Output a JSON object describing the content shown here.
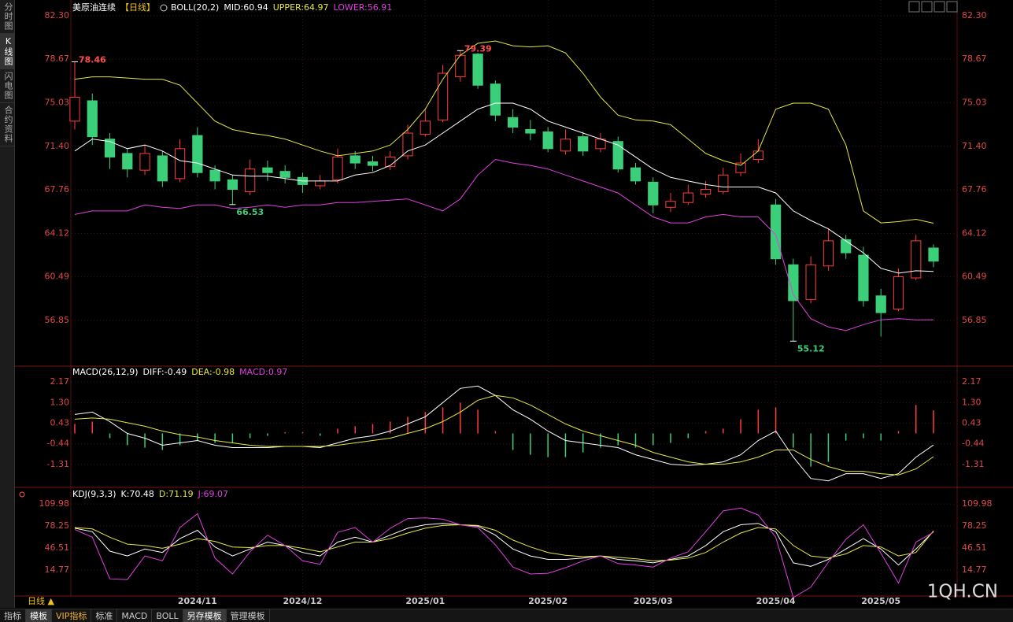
{
  "chart_data": [
    {
      "type": "candlestick",
      "title": "美原油连续",
      "period": "【日线】",
      "indicator": "BOLL(20,2)",
      "categories": [
        null,
        null,
        null,
        null,
        null,
        null,
        null,
        "2024/11",
        null,
        null,
        null,
        null,
        null,
        "2024/12",
        null,
        null,
        null,
        null,
        null,
        null,
        "2025/01",
        null,
        null,
        null,
        null,
        null,
        null,
        "2025/02",
        null,
        null,
        null,
        null,
        null,
        "2025/03",
        null,
        null,
        null,
        null,
        null,
        null,
        "2025/04",
        null,
        null,
        null,
        null,
        null,
        "2025/05",
        null,
        null,
        null
      ],
      "open": [
        73.5,
        75.2,
        72,
        70.8,
        69.4,
        70.6,
        68.7,
        72.3,
        69.4,
        68.6,
        67.6,
        69.6,
        69.3,
        68.8,
        68.1,
        68.6,
        70.6,
        70.1,
        69.7,
        70.6,
        72.4,
        73.6,
        77.2,
        79.1,
        76.6,
        73.8,
        72.8,
        72.6,
        71,
        72.2,
        71.2,
        71.8,
        69.6,
        68.4,
        66.3,
        66.7,
        67.4,
        67.6,
        69.2,
        70.3,
        66.5,
        61.5,
        58.6,
        61.4,
        63.6,
        62.3,
        58.9,
        57.8,
        60.4,
        62.9
      ],
      "high": [
        78.46,
        75.8,
        72.5,
        71.2,
        71.5,
        71,
        72,
        73,
        69.8,
        69,
        70.3,
        70.2,
        69.8,
        69.2,
        69,
        71.2,
        71,
        70.6,
        71,
        73.2,
        74.5,
        78.2,
        79.39,
        79.2,
        76.9,
        74.5,
        73.6,
        73,
        72.8,
        72.6,
        72.5,
        72.2,
        70,
        68.8,
        67.5,
        68.2,
        68.5,
        69.6,
        70.8,
        72,
        67,
        62,
        62.2,
        64.5,
        64,
        63,
        59.5,
        61.2,
        64,
        63.2
      ],
      "low": [
        72.8,
        71.5,
        69.5,
        68.8,
        69,
        68,
        68.4,
        68.8,
        67.8,
        66.53,
        67.3,
        68.5,
        68.3,
        67.5,
        67.8,
        68.3,
        69.5,
        69.3,
        69.4,
        70.3,
        72.2,
        73.4,
        76.8,
        76.2,
        73.5,
        72.5,
        71.9,
        70.9,
        70.7,
        70.6,
        70.9,
        69.2,
        68.2,
        65.8,
        65.9,
        66.5,
        67.1,
        67.4,
        68.9,
        70,
        61.5,
        55.12,
        58.3,
        61,
        62,
        58,
        55.5,
        57.6,
        60.2,
        61.3
      ],
      "close": [
        75.5,
        72.2,
        70.5,
        69.5,
        70.8,
        68.5,
        71.2,
        69.2,
        68.5,
        67.8,
        69.5,
        69.2,
        68.8,
        68.2,
        68.5,
        70.5,
        70,
        69.8,
        70.5,
        72.5,
        73.5,
        77.5,
        79,
        76.5,
        74,
        73,
        72.5,
        71.2,
        72,
        71,
        72,
        69.5,
        68.5,
        66.5,
        66.8,
        67.5,
        67.8,
        69,
        70,
        71,
        62,
        58.5,
        61.5,
        63.5,
        62.5,
        58.5,
        57.5,
        60.5,
        63.5,
        61.8
      ],
      "up_color": "#ff3b3b",
      "down_color": "#3ccf7a",
      "series": [
        {
          "name": "MID:60.94",
          "color": "#ffffff",
          "values": [
            71,
            72,
            71.8,
            71.2,
            71.5,
            71,
            70.2,
            70,
            69.5,
            69,
            68.9,
            68.9,
            68.7,
            68.5,
            68.5,
            68.5,
            69,
            69.2,
            69.8,
            71,
            71.5,
            72.5,
            73.5,
            74.5,
            75,
            75,
            74.5,
            73.5,
            73,
            72.5,
            72,
            71.5,
            70.5,
            69.5,
            68.8,
            68.5,
            68.2,
            68,
            68,
            68,
            67.5,
            66,
            65.2,
            64.5,
            63.5,
            62.5,
            61.2,
            60.8,
            61,
            60.94
          ]
        },
        {
          "name": "UPPER:64.97",
          "color": "#e6e640",
          "values": [
            77,
            77.2,
            77.2,
            77.1,
            77,
            77,
            76.5,
            75,
            73.5,
            72.8,
            72.5,
            72.3,
            72,
            71.5,
            71,
            70.6,
            70.8,
            71,
            71.5,
            72.8,
            74.5,
            77,
            79,
            80,
            80.2,
            79.8,
            79.7,
            79.8,
            79.2,
            77.5,
            75.5,
            74,
            73.6,
            73.5,
            73.2,
            72,
            70.8,
            70.2,
            69.8,
            71,
            74.5,
            75,
            75,
            74.5,
            71.5,
            66,
            65,
            65.1,
            65.3,
            64.97
          ]
        },
        {
          "name": "LOWER:56.91",
          "color": "#e040e0",
          "values": [
            65.7,
            66,
            66,
            66,
            66.5,
            66.3,
            66.2,
            66.5,
            66.5,
            66.2,
            66.3,
            66.5,
            66.3,
            66.5,
            66.5,
            66.7,
            66.7,
            66.8,
            66.9,
            67,
            66.5,
            66,
            67,
            69,
            70.3,
            70,
            69.8,
            69.5,
            69,
            68.5,
            68,
            67.5,
            66.5,
            65.5,
            65,
            65,
            65.5,
            65.7,
            65.5,
            65.5,
            64,
            59,
            57,
            56.3,
            56,
            56.5,
            56.9,
            57,
            56.9,
            56.91
          ]
        }
      ],
      "annotations": [
        78.46,
        79.39,
        66.53,
        55.12
      ],
      "ylim": [
        53.23,
        82.83
      ],
      "yticks": [
        {
          "value": 82.3,
          "label": "82.30"
        },
        78.67,
        75.03,
        {
          "value": 71.4,
          "label": "71.40"
        },
        67.76,
        64.12,
        60.49,
        56.85
      ],
      "grid": true
    },
    {
      "type": "macd",
      "title": "MACD(26,12,9)",
      "up_color": "#ff3b3b",
      "down_color": "#3ccf7a",
      "series": [
        {
          "name": "DIFF:-0.49",
          "color": "#ffffff",
          "values": [
            0.8,
            0.9,
            0.5,
            0.0,
            -0.2,
            -0.5,
            -0.4,
            -0.3,
            -0.5,
            -0.6,
            -0.6,
            -0.6,
            -0.55,
            -0.55,
            -0.6,
            -0.4,
            -0.2,
            -0.1,
            0.1,
            0.4,
            0.7,
            1.3,
            1.9,
            2.0,
            1.6,
            1.0,
            0.6,
            0.1,
            -0.3,
            -0.4,
            -0.5,
            -0.6,
            -0.9,
            -1.1,
            -1.3,
            -1.35,
            -1.3,
            -1.2,
            -0.9,
            -0.3,
            0.1,
            -1.0,
            -1.9,
            -2.0,
            -1.7,
            -1.7,
            -1.9,
            -1.7,
            -1.0,
            -0.49
          ]
        },
        {
          "name": "DEA:-0.98",
          "color": "#e6e640",
          "values": [
            0.6,
            0.65,
            0.6,
            0.45,
            0.3,
            0.1,
            -0.05,
            -0.15,
            -0.3,
            -0.4,
            -0.5,
            -0.55,
            -0.55,
            -0.55,
            -0.55,
            -0.5,
            -0.4,
            -0.3,
            -0.2,
            0,
            0.2,
            0.5,
            0.9,
            1.4,
            1.6,
            1.5,
            1.2,
            0.8,
            0.4,
            0.1,
            -0.1,
            -0.3,
            -0.5,
            -0.8,
            -1.0,
            -1.2,
            -1.3,
            -1.3,
            -1.2,
            -1.0,
            -0.7,
            -0.7,
            -1.1,
            -1.4,
            -1.6,
            -1.6,
            -1.7,
            -1.75,
            -1.5,
            -0.98
          ]
        },
        {
          "name": "MACD:0.97",
          "color": "#e040e0",
          "values": [
            0.4,
            0.5,
            -0.2,
            -0.5,
            -0.6,
            -0.7,
            -0.5,
            -0.3,
            -0.4,
            -0.4,
            -0.2,
            -0.1,
            0.05,
            0.05,
            -0.1,
            0.2,
            0.3,
            0.4,
            0.5,
            0.7,
            0.9,
            1.1,
            1.3,
            1.0,
            0.1,
            -0.7,
            -0.9,
            -1.0,
            -1.0,
            -0.8,
            -0.6,
            -0.5,
            -0.6,
            -0.5,
            -0.4,
            -0.2,
            0.1,
            0.2,
            0.6,
            1.0,
            1.1,
            -0.6,
            -1.4,
            -1.2,
            -0.3,
            -0.2,
            -0.3,
            0.1,
            1.2,
            0.97
          ]
        }
      ],
      "ylim": [
        -2.21,
        2.74
      ],
      "yticks": [
        2.17,
        {
          "value": 1.3,
          "label": "1.30"
        },
        0.43,
        -0.44,
        -1.31
      ],
      "grid": true
    },
    {
      "type": "kdj",
      "title": "KDJ(9,3,3)",
      "series": [
        {
          "name": "K:70.48",
          "color": "#ffffff",
          "values": [
            75,
            70,
            42,
            35,
            45,
            40,
            60,
            72,
            48,
            35,
            45,
            55,
            50,
            40,
            35,
            55,
            62,
            55,
            65,
            75,
            80,
            82,
            80,
            78,
            65,
            45,
            35,
            30,
            30,
            32,
            35,
            30,
            28,
            25,
            30,
            35,
            50,
            70,
            80,
            82,
            70,
            25,
            20,
            30,
            45,
            60,
            45,
            22,
            45,
            70.48
          ]
        },
        {
          "name": "D:71.19",
          "color": "#e6e640",
          "values": [
            76,
            74,
            62,
            52,
            50,
            46,
            52,
            60,
            56,
            48,
            47,
            50,
            50,
            46,
            41,
            48,
            55,
            55,
            60,
            68,
            75,
            79,
            80,
            79,
            72,
            58,
            48,
            40,
            36,
            34,
            35,
            33,
            31,
            28,
            29,
            32,
            40,
            55,
            68,
            76,
            74,
            50,
            35,
            32,
            38,
            50,
            48,
            35,
            40,
            71.19
          ]
        },
        {
          "name": "J:69.07",
          "color": "#e040e0",
          "values": [
            73,
            62,
            2,
            1,
            35,
            28,
            76,
            96,
            32,
            9,
            41,
            65,
            50,
            28,
            23,
            69,
            76,
            55,
            75,
            89,
            90,
            88,
            80,
            76,
            51,
            19,
            9,
            10,
            18,
            28,
            35,
            24,
            22,
            19,
            32,
            41,
            70,
            100,
            104,
            94,
            62,
            -25,
            -10,
            26,
            59,
            80,
            39,
            -4,
            55,
            69.07
          ]
        }
      ],
      "ylim": [
        -20.5,
        130.5
      ],
      "yticks": [
        109.98,
        78.25,
        46.51,
        14.77
      ],
      "grid": true
    }
  ],
  "sidebar": [
    "分时图",
    "K线图",
    "闪电图",
    "合约资料"
  ],
  "period_button": "日线 ▲",
  "tabs": [
    "指标",
    "模板",
    "VIP指标",
    "标准",
    "MACD",
    "BOLL",
    "另存模板",
    "管理模板"
  ],
  "watermark": "1QH.CN"
}
